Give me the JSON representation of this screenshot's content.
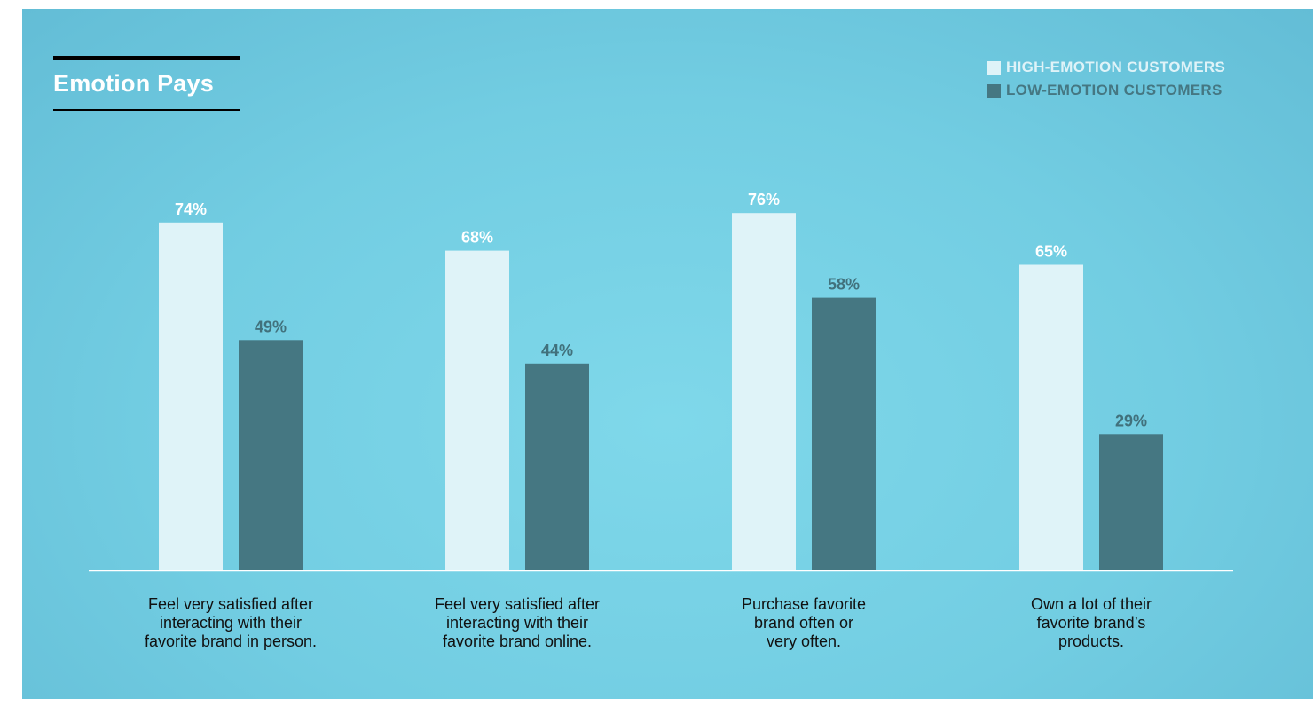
{
  "chart_data": {
    "type": "bar",
    "title": "Emotion Pays",
    "categories": [
      [
        "Feel very satisfied after",
        "interacting with their",
        "favorite brand in person."
      ],
      [
        "Feel very satisfied after",
        "interacting with their",
        "favorite brand online."
      ],
      [
        "Purchase favorite",
        "brand often or",
        "very often."
      ],
      [
        "Own a lot of their",
        "favorite brand’s",
        "products."
      ]
    ],
    "series": [
      {
        "name": "HIGH-EMOTION CUSTOMERS",
        "values": [
          74,
          68,
          76,
          65
        ],
        "labels": [
          "74%",
          "68%",
          "76%",
          "65%"
        ],
        "color": "#dff3f8",
        "label_color": "#ffffff"
      },
      {
        "name": "LOW-EMOTION CUSTOMERS",
        "values": [
          49,
          44,
          58,
          29
        ],
        "labels": [
          "49%",
          "44%",
          "58%",
          "29%"
        ],
        "color": "#457782",
        "label_color": "#41717c"
      }
    ],
    "ylim": [
      0,
      100
    ],
    "grid": false,
    "legend_position": "top-right"
  }
}
